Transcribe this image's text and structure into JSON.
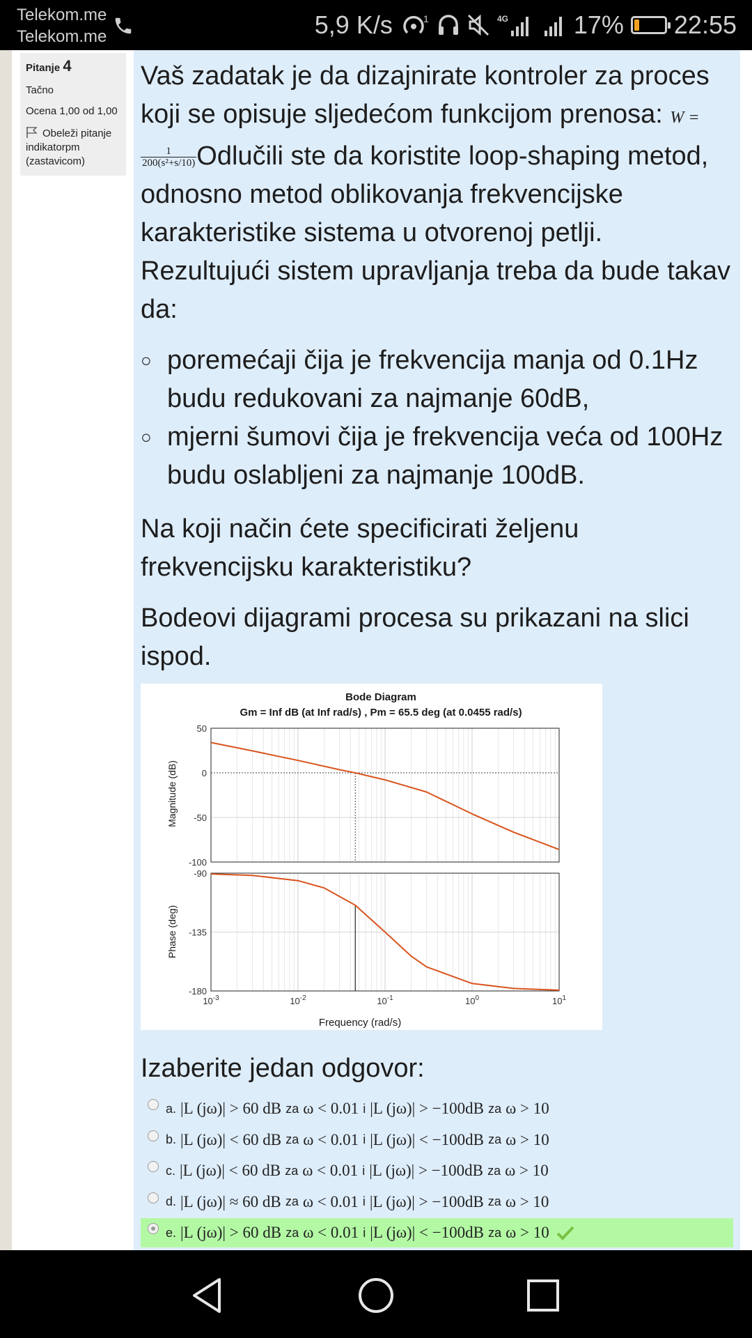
{
  "status_bar": {
    "carrier_1": "Telekom.me",
    "carrier_2": "Telekom.me",
    "speed": "5,9 K/s",
    "network": "4G",
    "battery": "17%",
    "time": "22:55",
    "battery_level": 0.17,
    "battery_color": "#f0a020"
  },
  "question_info": {
    "label": "Pitanje",
    "number": "4",
    "state": "Tačno",
    "grade": "Ocena 1,00 od 1,00",
    "flag": "Obeleži pitanje indikatorpm (zastavicom)"
  },
  "question": {
    "intro": "Vaš zadatak je da dizajnirate kontroler za proces koji se opisuje sljedećom funkcijom prenosa:",
    "tf_lhs": "W =",
    "tf_num": "1",
    "tf_den": "200(s²+s/10)",
    "intro_cont": "Odlučili ste da koristite loop-shaping metod, odnosno metod oblikovanja frekvencijske karakteristike sistema u otvorenoj petlji. Rezultujući sistem upravljanja treba da bude takav da:",
    "req_1": "poremećaji čija je frekvencija manja od 0.1Hz budu redukovani za najmanje 60dB,",
    "req_2": "mjerni šumovi čija je frekvencija veća od 100Hz budu oslabljeni za najmanje 100dB.",
    "para_2": "Na koji način ćete specificirati željenu frekvencijsku karakteristiku?",
    "para_3": "Bodeovi dijagrami procesa su prikazani na slici ispod."
  },
  "chart_data": {
    "type": "line",
    "title": "Bode Diagram",
    "subtitle": "Gm = Inf dB (at Inf rad/s) ,  Pm = 65.5 deg (at 0.0455 rad/s)",
    "xlabel": "Frequency  (rad/s)",
    "xscale": "log",
    "xlim": [
      0.001,
      10
    ],
    "x_ticks": [
      "10-3",
      "10-2",
      "10-1",
      "100",
      "101"
    ],
    "grid": true,
    "panels": [
      {
        "name": "magnitude",
        "ylabel": "Magnitude (dB)",
        "ylim": [
          -100,
          50
        ],
        "y_ticks": [
          "50",
          "0",
          "-50",
          "-100"
        ],
        "series": [
          {
            "color": "#d9541e",
            "x": [
              0.001,
              0.003,
              0.01,
              0.03,
              0.0455,
              0.1,
              0.3,
              1,
              3,
              10
            ],
            "y": [
              34,
              24.6,
              13.9,
              3.5,
              0,
              -7.9,
              -21.5,
              -46,
              -66.6,
              -86
            ]
          }
        ],
        "markers": [
          {
            "x": 0.0455,
            "label": "gain crossover (dotted)"
          }
        ]
      },
      {
        "name": "phase",
        "ylabel": "Phase (deg)",
        "ylim": [
          -180,
          -90
        ],
        "y_ticks": [
          "-90",
          "-135",
          "-180"
        ],
        "series": [
          {
            "color": "#d9541e",
            "x": [
              0.001,
              0.003,
              0.01,
              0.02,
              0.0455,
              0.1,
              0.2,
              0.3,
              1,
              3,
              10
            ],
            "y": [
              -90.6,
              -91.7,
              -95.7,
              -101.3,
              -114.5,
              -135,
              -153.4,
              -161.6,
              -174.3,
              -178.1,
              -179.4
            ]
          }
        ],
        "markers": [
          {
            "x": 0.0455,
            "label": "phase margin line"
          }
        ]
      }
    ]
  },
  "answers": {
    "title": "Izaberite jedan odgovor:",
    "options": [
      {
        "letter": "a.",
        "lhs": "|L (jω)| > 60 dB",
        "za1": "za",
        "cond1": "ω < 0.01",
        "i": "i",
        "rhs": "|L (jω)| > −100dB",
        "za2": "za",
        "cond2": "ω > 10",
        "selected": false
      },
      {
        "letter": "b.",
        "lhs": "|L (jω)| < 60 dB",
        "za1": "za",
        "cond1": "ω < 0.01",
        "i": "i",
        "rhs": "|L (jω)| < −100dB",
        "za2": "za",
        "cond2": "ω > 10",
        "selected": false
      },
      {
        "letter": "c.",
        "lhs": "|L (jω)| < 60 dB",
        "za1": "za",
        "cond1": "ω < 0.01",
        "i": "i",
        "rhs": "|L (jω)| > −100dB",
        "za2": "za",
        "cond2": "ω > 10",
        "selected": false
      },
      {
        "letter": "d.",
        "lhs": "|L (jω)| ≈ 60 dB",
        "za1": "za",
        "cond1": "ω < 0.01",
        "i": "i",
        "rhs": "|L (jω)| > −100dB",
        "za2": "za",
        "cond2": "ω > 10",
        "selected": false
      },
      {
        "letter": "e.",
        "lhs": "|L (jω)| > 60 dB",
        "za1": "za",
        "cond1": "ω < 0.01",
        "i": "i",
        "rhs": "|L (jω)| < −100dB",
        "za2": "za",
        "cond2": "ω > 10",
        "selected": true
      }
    ],
    "correct_color": "#b3f9a4",
    "check_color": "#7cc242"
  },
  "nav_bar": {
    "icons": [
      "back-icon",
      "home-icon",
      "recents-icon"
    ]
  }
}
